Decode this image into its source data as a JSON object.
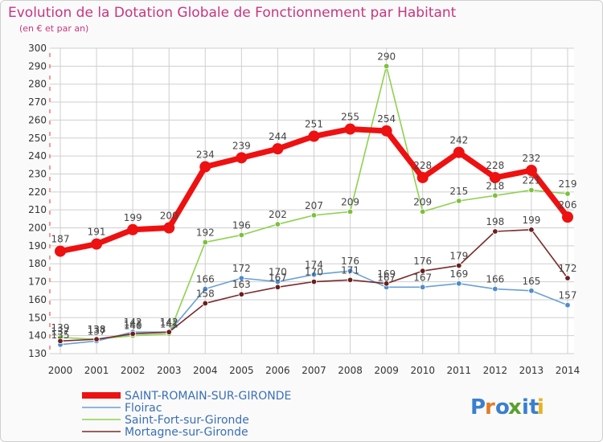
{
  "colors": {
    "title": "#c8357f",
    "grid": "#cfcfcf",
    "axis_ticks": "#e0403a"
  },
  "logo": {
    "text": "Proxiti",
    "letters": [
      "P",
      "r",
      "o",
      "x",
      "i",
      "t",
      "i"
    ],
    "colors": [
      "#3a7fd0",
      "#e27b26",
      "#3a7fd0",
      "#5aa02c",
      "#3a7fd0",
      "#3a7fd0",
      "#e8b21a"
    ]
  },
  "chart_data": {
    "type": "line",
    "title": "Evolution de la Dotation Globale de Fonctionnement par Habitant",
    "subtitle": "(en € et par an)",
    "xlabel": "",
    "ylabel": "",
    "x": [
      "2000",
      "2001",
      "2002",
      "2003",
      "2004",
      "2005",
      "2006",
      "2007",
      "2008",
      "2009",
      "2010",
      "2011",
      "2012",
      "2013",
      "2014"
    ],
    "ylim": [
      130,
      300
    ],
    "yticks": [
      130,
      140,
      150,
      160,
      170,
      180,
      190,
      200,
      210,
      220,
      230,
      240,
      250,
      260,
      270,
      280,
      290,
      300
    ],
    "grid": true,
    "legend_position": "bottom-left",
    "series": [
      {
        "name": "Saint-Fort-sur-Gironde",
        "color": "#8fd14f",
        "marker": "#7cc03c",
        "weight": "thin",
        "values": [
          139,
          138,
          140,
          141,
          192,
          196,
          202,
          207,
          209,
          290,
          209,
          215,
          218,
          221,
          219
        ],
        "labels": [
          "139",
          "138",
          "140",
          "141",
          "192",
          "196",
          "202",
          "207",
          "209",
          "290",
          "209",
          "215",
          "218",
          "221",
          "219"
        ]
      },
      {
        "name": "Floirac",
        "color": "#6aa0d4",
        "marker": "#4f8cc9",
        "weight": "thin",
        "values": [
          135,
          137,
          142,
          142,
          166,
          172,
          170,
          174,
          176,
          167,
          167,
          169,
          166,
          165,
          157
        ],
        "labels": [
          "135",
          "137",
          "142",
          "142",
          "166",
          "172",
          "170",
          "174",
          "176",
          "167",
          "167",
          "169",
          "166",
          "165",
          "157"
        ]
      },
      {
        "name": "Mortagne-sur-Gironde",
        "color": "#7b2a2a",
        "marker": "#6a1f1f",
        "weight": "thin",
        "values": [
          137,
          138,
          141,
          142,
          158,
          163,
          167,
          170,
          171,
          169,
          176,
          179,
          198,
          199,
          172
        ],
        "labels": [
          "137",
          "138",
          "141",
          "142",
          "158",
          "163",
          "167",
          "170",
          "171",
          "169",
          "176",
          "179",
          "198",
          "199",
          "172"
        ]
      },
      {
        "name": "SAINT-ROMAIN-SUR-GIRONDE",
        "color": "#ee1111",
        "marker": "#ee1111",
        "weight": "thick",
        "values": [
          187,
          191,
          199,
          200,
          234,
          239,
          244,
          251,
          255,
          254,
          228,
          242,
          228,
          232,
          206
        ],
        "labels": [
          "187",
          "191",
          "199",
          "200",
          "234",
          "239",
          "244",
          "251",
          "255",
          "254",
          "228",
          "242",
          "228",
          "232",
          "206"
        ]
      }
    ],
    "legend": [
      "SAINT-ROMAIN-SUR-GIRONDE",
      "Floirac",
      "Saint-Fort-sur-Gironde",
      "Mortagne-sur-Gironde"
    ]
  }
}
